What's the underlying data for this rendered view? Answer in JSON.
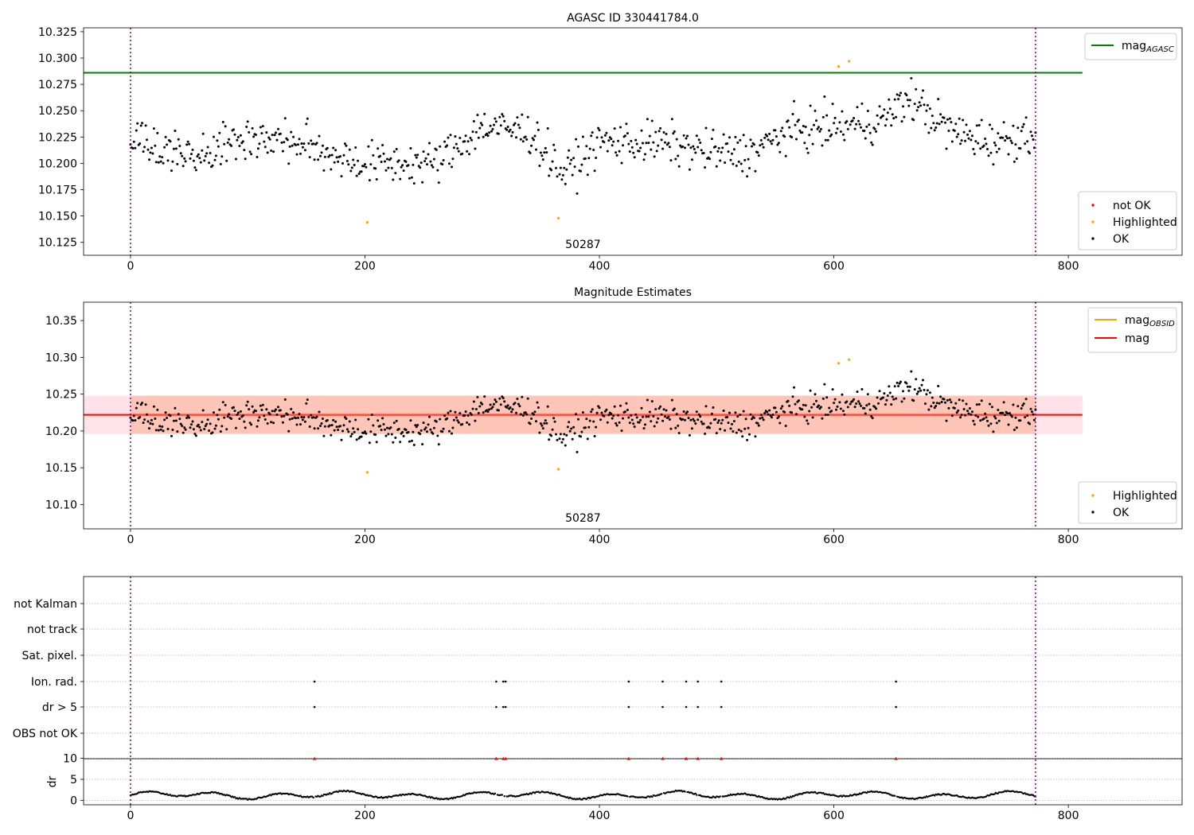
{
  "colors": {
    "ok": "#000000",
    "highlighted": "#ffa500",
    "not_ok": "#ff0000",
    "mag_agasc": "#008000",
    "mag": "#ff0000",
    "mag_obsid": "#ffa500",
    "band_outer": "#ffc0cb",
    "band_inner": "#ffa07a",
    "obs_boundary": "#800080"
  },
  "chart_data": [
    {
      "type": "scatter",
      "title": "AGASC ID 330441784.0",
      "xlim": [
        -40,
        897
      ],
      "ylim": [
        10.1127,
        10.3287
      ],
      "xticks": [
        0,
        200,
        400,
        600,
        800
      ],
      "yticks": [
        10.125,
        10.15,
        10.175,
        10.2,
        10.225,
        10.25,
        10.275,
        10.3,
        10.325
      ],
      "ytick_labels": [
        "10.125",
        "10.150",
        "10.175",
        "10.200",
        "10.225",
        "10.250",
        "10.275",
        "10.300",
        "10.325"
      ],
      "obsid_label": "50287",
      "obs_boundaries": [
        0,
        772
      ],
      "mag_agasc": 10.286,
      "mag_agasc_xrange": [
        -40,
        812
      ],
      "highlighted_points": [
        [
          202,
          10.144
        ],
        [
          365,
          10.148
        ],
        [
          604,
          10.292
        ],
        [
          613,
          10.297
        ]
      ],
      "legend_lines": [
        {
          "label": "mag",
          "subscript": "AGASC",
          "color": "#008000"
        }
      ],
      "legend_points": [
        {
          "label": "not OK",
          "color": "#ff0000"
        },
        {
          "label": "Highlighted",
          "color": "#ffa500"
        },
        {
          "label": "OK",
          "color": "#000000"
        }
      ]
    },
    {
      "type": "scatter",
      "title": "Magnitude Estimates",
      "xlim": [
        -40,
        897
      ],
      "ylim": [
        10.067,
        10.375
      ],
      "xticks": [
        0,
        200,
        400,
        600,
        800
      ],
      "yticks": [
        10.1,
        10.15,
        10.2,
        10.25,
        10.3,
        10.35
      ],
      "ytick_labels": [
        "10.10",
        "10.15",
        "10.20",
        "10.25",
        "10.30",
        "10.35"
      ],
      "obsid_label": "50287",
      "obs_boundaries": [
        0,
        772
      ],
      "mag": 10.222,
      "mag_xrange": [
        -40,
        812
      ],
      "mag_band": [
        10.196,
        10.248
      ],
      "mag_obsid": 10.222,
      "mag_obsid_xrange": [
        0,
        772
      ],
      "highlighted_points": [
        [
          202,
          10.144
        ],
        [
          365,
          10.148
        ],
        [
          604,
          10.292
        ],
        [
          613,
          10.297
        ]
      ],
      "legend_lines": [
        {
          "label": "mag",
          "subscript": "OBSID",
          "color": "#ffa500"
        },
        {
          "label": "mag",
          "subscript": "",
          "color": "#ff0000"
        }
      ],
      "legend_points": [
        {
          "label": "Highlighted",
          "color": "#ffa500"
        },
        {
          "label": "OK",
          "color": "#000000"
        }
      ]
    },
    {
      "type": "scatter",
      "title": "",
      "xlim": [
        -40,
        897
      ],
      "xticks": [
        0,
        200,
        400,
        600,
        800
      ],
      "obs_boundaries": [
        0,
        772
      ],
      "flag_rows": [
        "not Kalman",
        "not track",
        "Sat. pixel.",
        "Ion. rad.",
        "dr > 5",
        "OBS not OK"
      ],
      "flags": {
        "Ion. rad.": [
          157,
          312,
          318,
          320,
          425,
          454,
          474,
          484,
          504,
          653
        ],
        "dr > 5": [
          157,
          312,
          318,
          320,
          425,
          454,
          474,
          484,
          504,
          653
        ]
      },
      "dr_ylabel": "dr",
      "dr_ylim": [
        -0.5,
        10.3
      ],
      "dr_yticks": [
        0,
        5,
        10
      ],
      "dr_clipped_points": [
        157,
        312,
        318,
        320,
        425,
        454,
        474,
        484,
        504,
        653
      ],
      "dr_clip_value": 10
    }
  ]
}
